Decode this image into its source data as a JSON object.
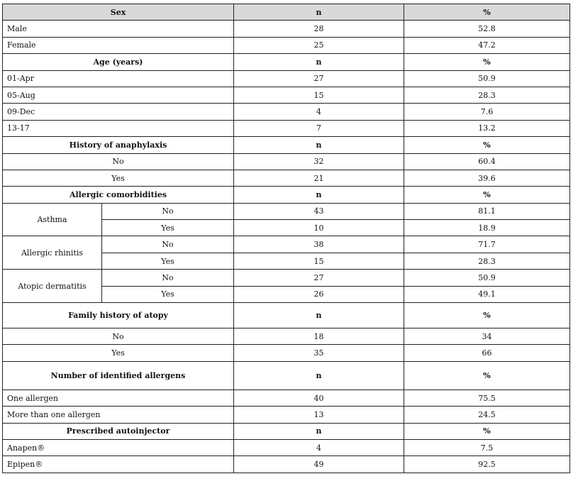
{
  "table": {
    "header": {
      "label": "Sex",
      "n": "n",
      "pct": "%"
    },
    "sex": [
      {
        "label": "Male",
        "n": "28",
        "pct": "52.8"
      },
      {
        "label": "Female",
        "n": "25",
        "pct": "47.2"
      }
    ],
    "age_header": {
      "label": "Age (years)",
      "n": "n",
      "pct": "%"
    },
    "age": [
      {
        "label": "01-Apr",
        "n": "27",
        "pct": "50.9"
      },
      {
        "label": "05-Aug",
        "n": "15",
        "pct": "28.3"
      },
      {
        "label": "09-Dec",
        "n": "4",
        "pct": "7.6"
      },
      {
        "label": "13-17",
        "n": "7",
        "pct": "13.2"
      }
    ],
    "anaphylaxis_header": {
      "label": "History of anaphylaxis",
      "n": "n",
      "pct": "%"
    },
    "anaphylaxis": [
      {
        "label": "No",
        "n": "32",
        "pct": "60.4"
      },
      {
        "label": "Yes",
        "n": "21",
        "pct": "39.6"
      }
    ],
    "comorbidities_header": {
      "label": "Allergic comorbidities",
      "n": "n",
      "pct": "%"
    },
    "comorbidities": [
      {
        "group": "Asthma",
        "rows": [
          {
            "label": "No",
            "n": "43",
            "pct": "81.1"
          },
          {
            "label": "Yes",
            "n": "10",
            "pct": "18.9"
          }
        ]
      },
      {
        "group": "Allergic rhinitis",
        "rows": [
          {
            "label": "No",
            "n": "38",
            "pct": "71.7"
          },
          {
            "label": "Yes",
            "n": "15",
            "pct": "28.3"
          }
        ]
      },
      {
        "group": "Atopic dermatitis",
        "rows": [
          {
            "label": "No",
            "n": "27",
            "pct": "50.9"
          },
          {
            "label": "Yes",
            "n": "26",
            "pct": "49.1"
          }
        ]
      }
    ],
    "family_header": {
      "label": "Family history of atopy",
      "n": "n",
      "pct": "%"
    },
    "family": [
      {
        "label": "No",
        "n": "18",
        "pct": "34"
      },
      {
        "label": "Yes",
        "n": "35",
        "pct": "66"
      }
    ],
    "allergens_header": {
      "label": "Number of identified allergens",
      "n": "n",
      "pct": "%"
    },
    "allergens": [
      {
        "label": "One allergen",
        "n": "40",
        "pct": "75.5"
      },
      {
        "label": "More than one allergen",
        "n": "13",
        "pct": "24.5"
      }
    ],
    "autoinjector_header": {
      "label": "Prescribed autoinjector",
      "n": "n",
      "pct": "%"
    },
    "autoinjector": [
      {
        "label": "Anapen®",
        "n": "4",
        "pct": "7.5"
      },
      {
        "label": "Epipen®",
        "n": "49",
        "pct": "92.5"
      }
    ]
  }
}
